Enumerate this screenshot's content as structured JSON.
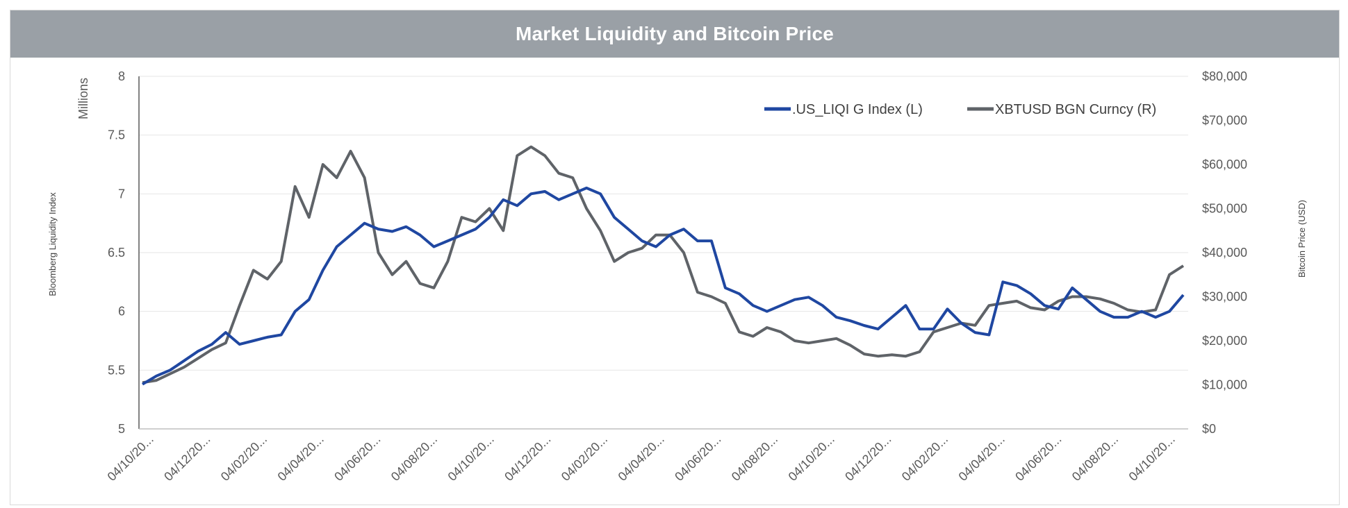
{
  "title": "Market Liquidity and Bitcoin Price",
  "left_axis": {
    "label": "Bloomberg Liquidity Index",
    "unit": "Millions",
    "ticks": [
      "5",
      "5.5",
      "6",
      "6.5",
      "7",
      "7.5",
      "8"
    ]
  },
  "right_axis": {
    "label": "Bitcoin Price (USD)",
    "ticks": [
      "$0",
      "$10,000",
      "$20,000",
      "$30,000",
      "$40,000",
      "$50,000",
      "$60,000",
      "$70,000",
      "$80,000"
    ]
  },
  "x_axis": {
    "ticks": [
      "04/10/20...",
      "04/12/20...",
      "04/02/20...",
      "04/04/20...",
      "04/06/20...",
      "04/08/20...",
      "04/10/20...",
      "04/12/20...",
      "04/02/20...",
      "04/04/20...",
      "04/06/20...",
      "04/08/20...",
      "04/10/20...",
      "04/12/20...",
      "04/02/20...",
      "04/04/20...",
      "04/06/20...",
      "04/08/20...",
      "04/10/20..."
    ]
  },
  "legend": {
    "liqi": ".US_LIQI G Index  (L)",
    "btc": "XBTUSD BGN Curncy  (R)"
  },
  "colors": {
    "liqi": "#1f47a1",
    "btc": "#5f6368",
    "title_bg": "#9aa0a6",
    "grid": "#e6e6e6"
  },
  "chart_data": {
    "type": "line",
    "title": "Market Liquidity and Bitcoin Price",
    "ylabel": "Bloomberg Liquidity Index",
    "y2label": "Bitcoin Price (USD)",
    "ylim": [
      5,
      8
    ],
    "y2lim": [
      0,
      80000
    ],
    "grid": true,
    "legend_position": "top-right",
    "x_ticks": [
      "04/10/20...",
      "04/12/20...",
      "04/02/20...",
      "04/04/20...",
      "04/06/20...",
      "04/08/20...",
      "04/10/20...",
      "04/12/20...",
      "04/02/20...",
      "04/04/20...",
      "04/06/20...",
      "04/08/20...",
      "04/10/20...",
      "04/12/20...",
      "04/02/20...",
      "04/04/20...",
      "04/06/20...",
      "04/08/20...",
      "04/10/20..."
    ],
    "x": [
      0,
      0.25,
      0.5,
      0.75,
      1,
      1.25,
      1.5,
      1.75,
      2,
      2.25,
      2.5,
      2.75,
      3,
      3.25,
      3.5,
      3.75,
      4,
      4.25,
      4.5,
      4.75,
      5,
      5.25,
      5.5,
      5.75,
      6,
      6.25,
      6.5,
      6.75,
      7,
      7.25,
      7.5,
      7.75,
      8,
      8.25,
      8.5,
      8.75,
      9,
      9.25,
      9.5,
      9.75,
      10,
      10.25,
      10.5,
      10.75,
      11,
      11.25,
      11.5,
      11.75,
      12,
      12.25,
      12.5,
      12.75,
      13,
      13.25,
      13.5,
      13.75,
      14,
      14.25,
      14.5,
      14.75,
      15,
      15.25,
      15.5,
      15.75,
      16,
      16.25,
      16.5,
      16.75,
      17,
      17.25,
      17.5,
      17.75,
      18,
      18.25,
      18.5,
      18.75
    ],
    "series": [
      {
        "name": ".US_LIQI G Index  (L)",
        "axis": "left",
        "values": [
          5.38,
          5.45,
          5.5,
          5.58,
          5.66,
          5.72,
          5.82,
          5.72,
          5.75,
          5.78,
          5.8,
          6.0,
          6.1,
          6.35,
          6.55,
          6.65,
          6.75,
          6.7,
          6.68,
          6.72,
          6.65,
          6.55,
          6.6,
          6.65,
          6.7,
          6.8,
          6.95,
          6.9,
          7.0,
          7.02,
          6.95,
          7.0,
          7.05,
          7.0,
          6.8,
          6.7,
          6.6,
          6.55,
          6.65,
          6.7,
          6.6,
          6.6,
          6.2,
          6.15,
          6.05,
          6.0,
          6.05,
          6.1,
          6.12,
          6.05,
          5.95,
          5.92,
          5.88,
          5.85,
          5.95,
          6.05,
          5.85,
          5.85,
          6.02,
          5.9,
          5.82,
          5.8,
          6.25,
          6.22,
          6.15,
          6.05,
          6.02,
          6.2,
          6.1,
          6.0,
          5.95,
          5.95,
          6.0,
          5.95,
          6.0,
          6.14
        ]
      },
      {
        "name": "XBTUSD BGN Curncy  (R)",
        "axis": "right",
        "values": [
          10500,
          11000,
          12500,
          14000,
          16000,
          18000,
          19500,
          28000,
          36000,
          34000,
          38000,
          55000,
          48000,
          60000,
          57000,
          63000,
          57000,
          40000,
          35000,
          38000,
          33000,
          32000,
          38000,
          48000,
          47000,
          50000,
          45000,
          62000,
          64000,
          62000,
          58000,
          57000,
          50000,
          45000,
          38000,
          40000,
          41000,
          44000,
          44000,
          40000,
          31000,
          30000,
          28500,
          22000,
          21000,
          23000,
          22000,
          20000,
          19500,
          20000,
          20500,
          19000,
          17000,
          16500,
          16800,
          16500,
          17500,
          22000,
          23000,
          24000,
          23500,
          28000,
          28500,
          29000,
          27500,
          27000,
          29000,
          30000,
          30000,
          29500,
          28500,
          27000,
          26500,
          27000,
          35000,
          37000
        ]
      }
    ]
  }
}
